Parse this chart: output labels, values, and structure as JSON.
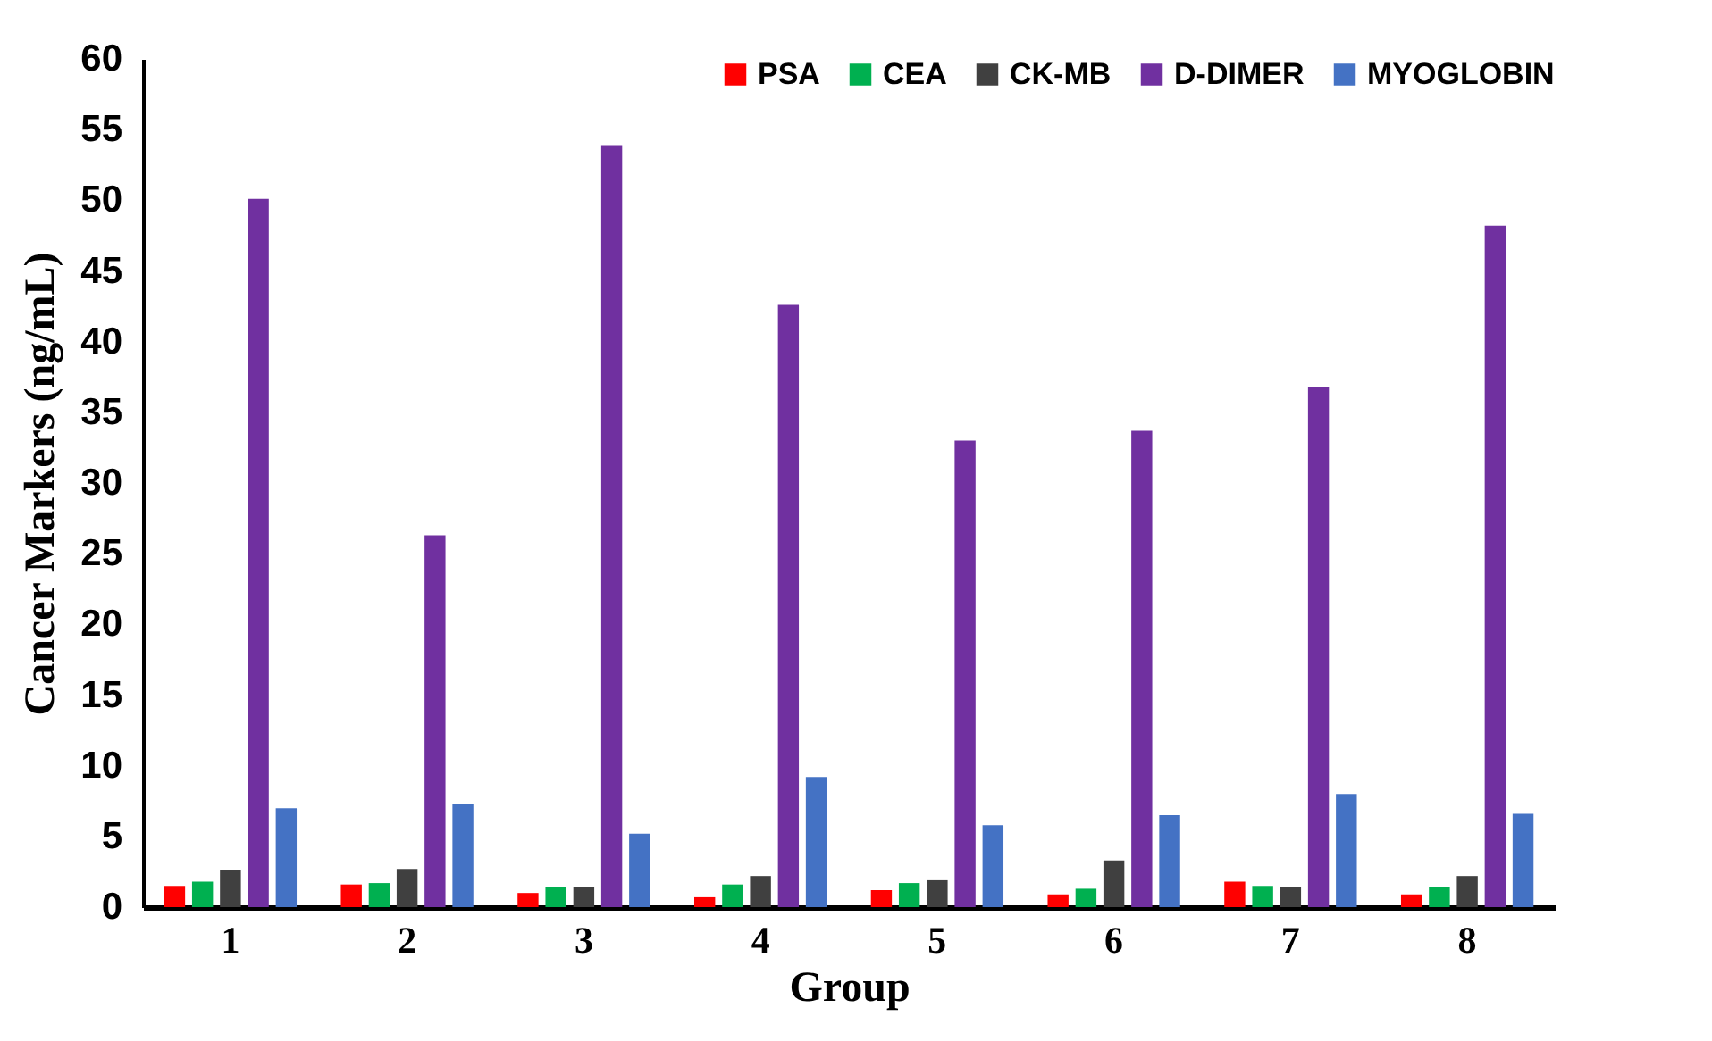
{
  "chart_data": {
    "type": "bar",
    "xlabel": "Group",
    "ylabel": "Cancer Markers (ng/mL)",
    "categories": [
      "1",
      "2",
      "3",
      "4",
      "5",
      "6",
      "7",
      "8"
    ],
    "series": [
      {
        "name": "PSA",
        "color": "#ff0000",
        "values": [
          1.5,
          1.6,
          1.0,
          0.7,
          1.2,
          0.9,
          1.8,
          0.9
        ]
      },
      {
        "name": "CEA",
        "color": "#00b050",
        "values": [
          1.8,
          1.7,
          1.4,
          1.6,
          1.7,
          1.3,
          1.5,
          1.4
        ]
      },
      {
        "name": "CK-MB",
        "color": "#404040",
        "values": [
          2.6,
          2.7,
          1.4,
          2.2,
          1.9,
          3.3,
          1.4,
          2.2
        ]
      },
      {
        "name": "D-DIMER",
        "color": "#7030a0",
        "values": [
          50.1,
          26.3,
          53.9,
          42.6,
          33.0,
          33.7,
          36.8,
          48.2
        ]
      },
      {
        "name": "MYOGLOBIN",
        "color": "#4472c4",
        "values": [
          7.0,
          7.3,
          5.2,
          9.2,
          5.8,
          6.5,
          8.0,
          6.6
        ]
      }
    ],
    "ylim": [
      0,
      60
    ],
    "yticks": [
      0,
      5,
      10,
      15,
      20,
      25,
      30,
      35,
      40,
      45,
      50,
      55,
      60
    ],
    "grid": false,
    "legend": "top right"
  }
}
